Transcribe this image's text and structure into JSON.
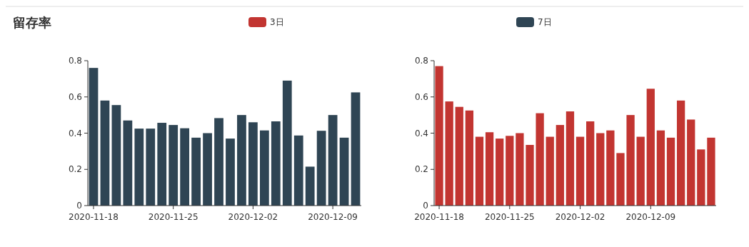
{
  "chart_data": [
    {
      "type": "bar",
      "title": "留存率",
      "categories": [
        "2020-11-18",
        null,
        null,
        null,
        null,
        null,
        null,
        "2020-11-25",
        null,
        null,
        null,
        null,
        null,
        null,
        "2020-12-02",
        null,
        null,
        null,
        null,
        null,
        null,
        "2020-12-09",
        null,
        null
      ],
      "series": [
        {
          "name": "7日",
          "color": "#2f4554",
          "values": [
            0.76,
            0.58,
            0.555,
            0.47,
            0.425,
            0.425,
            0.457,
            0.445,
            0.427,
            0.375,
            0.4,
            0.483,
            0.37,
            0.5,
            0.46,
            0.415,
            0.465,
            0.69,
            0.387,
            0.215,
            0.413,
            0.5,
            0.375,
            0.625
          ]
        }
      ],
      "ylim": [
        0,
        0.8
      ],
      "yticks": [
        0,
        0.2,
        0.4,
        0.6,
        0.8
      ],
      "grid": false,
      "legend": "top"
    },
    {
      "type": "bar",
      "categories": [
        "2020-11-18",
        null,
        null,
        null,
        null,
        null,
        null,
        "2020-11-25",
        null,
        null,
        null,
        null,
        null,
        null,
        "2020-12-02",
        null,
        null,
        null,
        null,
        null,
        null,
        "2020-12-09",
        null,
        null,
        null,
        null,
        null,
        null
      ],
      "series": [
        {
          "name": "3日",
          "color": "#c23531",
          "values": [
            0.77,
            0.575,
            0.545,
            0.525,
            0.38,
            0.405,
            0.37,
            0.385,
            0.4,
            0.335,
            0.51,
            0.38,
            0.445,
            0.52,
            0.38,
            0.465,
            0.4,
            0.415,
            0.29,
            0.5,
            0.38,
            0.645,
            0.415,
            0.375,
            0.58,
            0.475,
            0.31,
            0.375
          ]
        }
      ],
      "ylim": [
        0,
        0.8
      ],
      "yticks": [
        0,
        0.2,
        0.4,
        0.6,
        0.8
      ],
      "grid": false,
      "legend": "top"
    }
  ]
}
